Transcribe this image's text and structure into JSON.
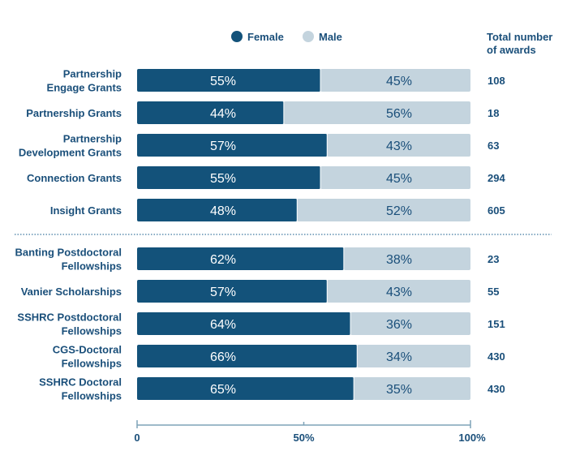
{
  "chart_data": {
    "type": "bar",
    "orientation": "horizontal",
    "stacked": true,
    "title": "",
    "xlabel": "",
    "ylabel": "",
    "xlim": [
      0,
      100
    ],
    "x_ticks": [
      "0",
      "50%",
      "100%"
    ],
    "grid": false,
    "legend_position": "top",
    "totals_header": [
      "Total number",
      "of awards"
    ],
    "colors": {
      "female": "#13527a",
      "male": "#c4d4de",
      "axis": "#7ea3b8",
      "text": "#1a4f7a",
      "divider": "#5f8fb0"
    },
    "series": [
      {
        "name": "Female",
        "values": [
          55,
          44,
          57,
          55,
          48,
          62,
          57,
          64,
          66,
          65
        ]
      },
      {
        "name": "Male",
        "values": [
          45,
          56,
          43,
          45,
          52,
          38,
          43,
          36,
          34,
          35
        ]
      }
    ],
    "categories": [
      [
        "Partnership",
        "Engage Grants"
      ],
      [
        "Partnership Grants"
      ],
      [
        "Partnership",
        "Development Grants"
      ],
      [
        "Connection Grants"
      ],
      [
        "Insight Grants"
      ],
      [
        "Banting Postdoctoral",
        "Fellowships"
      ],
      [
        "Vanier Scholarships"
      ],
      [
        "SSHRC Postdoctoral",
        "Fellowships"
      ],
      [
        "CGS-Doctoral",
        "Fellowships"
      ],
      [
        "SSHRC Doctoral",
        "Fellowships"
      ]
    ],
    "totals": [
      "108",
      "18",
      "63",
      "294",
      "605",
      "23",
      "55",
      "151",
      "430",
      "430"
    ],
    "groups": [
      {
        "name": "grants",
        "rows": [
          0,
          1,
          2,
          3,
          4
        ]
      },
      {
        "name": "fellowships",
        "rows": [
          5,
          6,
          7,
          8,
          9
        ]
      }
    ]
  }
}
